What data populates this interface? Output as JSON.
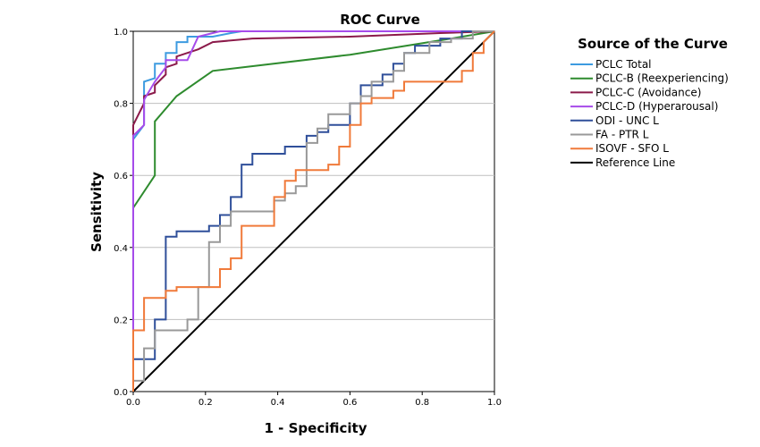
{
  "chart_data": {
    "type": "line",
    "title": "ROC Curve",
    "xlabel": "1 - Specificity",
    "ylabel": "Sensitivity",
    "xlim": [
      0,
      1
    ],
    "ylim": [
      0,
      1
    ],
    "xticks": [
      "0.0",
      "0.2",
      "0.4",
      "0.6",
      "0.8",
      "1.0"
    ],
    "yticks": [
      "0.0",
      "0.2",
      "0.4",
      "0.6",
      "0.8",
      "1.0"
    ],
    "grid": "horizontal",
    "legend_title": "Source of the Curve",
    "legend_position": "right",
    "series": [
      {
        "name": "PCLC Total",
        "color": "#3d9be0",
        "points": [
          [
            0,
            0
          ],
          [
            0,
            0.7
          ],
          [
            0.03,
            0.74
          ],
          [
            0.03,
            0.86
          ],
          [
            0.06,
            0.87
          ],
          [
            0.06,
            0.91
          ],
          [
            0.09,
            0.91
          ],
          [
            0.09,
            0.94
          ],
          [
            0.12,
            0.94
          ],
          [
            0.12,
            0.97
          ],
          [
            0.15,
            0.97
          ],
          [
            0.15,
            0.985
          ],
          [
            0.22,
            0.985
          ],
          [
            0.27,
            0.995
          ],
          [
            0.3,
            1.0
          ],
          [
            1,
            1
          ]
        ]
      },
      {
        "name": "PCLC-B (Reexperiencing)",
        "color": "#2e8b2e",
        "points": [
          [
            0,
            0
          ],
          [
            0,
            0.51
          ],
          [
            0.06,
            0.6
          ],
          [
            0.06,
            0.75
          ],
          [
            0.12,
            0.82
          ],
          [
            0.22,
            0.89
          ],
          [
            0.6,
            0.935
          ],
          [
            0.85,
            0.975
          ],
          [
            1,
            1
          ]
        ]
      },
      {
        "name": "PCLC-C (Avoidance)",
        "color": "#8b1a4a",
        "points": [
          [
            0,
            0
          ],
          [
            0,
            0.74
          ],
          [
            0.03,
            0.8
          ],
          [
            0.03,
            0.82
          ],
          [
            0.06,
            0.83
          ],
          [
            0.06,
            0.85
          ],
          [
            0.09,
            0.88
          ],
          [
            0.09,
            0.9
          ],
          [
            0.12,
            0.91
          ],
          [
            0.12,
            0.93
          ],
          [
            0.18,
            0.95
          ],
          [
            0.22,
            0.97
          ],
          [
            0.33,
            0.98
          ],
          [
            0.6,
            0.985
          ],
          [
            0.85,
            0.995
          ],
          [
            1,
            1
          ]
        ]
      },
      {
        "name": "PCLC-D (Hyperarousal)",
        "color": "#a64bea",
        "points": [
          [
            0,
            0
          ],
          [
            0,
            0.71
          ],
          [
            0.03,
            0.74
          ],
          [
            0.03,
            0.81
          ],
          [
            0.06,
            0.86
          ],
          [
            0.09,
            0.9
          ],
          [
            0.09,
            0.92
          ],
          [
            0.15,
            0.92
          ],
          [
            0.18,
            0.985
          ],
          [
            0.24,
            1.0
          ],
          [
            1,
            1
          ]
        ]
      },
      {
        "name": "ODI - UNC L",
        "color": "#2f4f9a",
        "points": [
          [
            0,
            0
          ],
          [
            0,
            0.09
          ],
          [
            0.06,
            0.09
          ],
          [
            0.06,
            0.2
          ],
          [
            0.09,
            0.2
          ],
          [
            0.09,
            0.43
          ],
          [
            0.12,
            0.43
          ],
          [
            0.12,
            0.445
          ],
          [
            0.21,
            0.445
          ],
          [
            0.21,
            0.46
          ],
          [
            0.24,
            0.46
          ],
          [
            0.24,
            0.49
          ],
          [
            0.27,
            0.49
          ],
          [
            0.27,
            0.54
          ],
          [
            0.3,
            0.54
          ],
          [
            0.3,
            0.63
          ],
          [
            0.33,
            0.63
          ],
          [
            0.33,
            0.66
          ],
          [
            0.42,
            0.66
          ],
          [
            0.42,
            0.68
          ],
          [
            0.48,
            0.68
          ],
          [
            0.48,
            0.71
          ],
          [
            0.51,
            0.71
          ],
          [
            0.51,
            0.72
          ],
          [
            0.54,
            0.72
          ],
          [
            0.54,
            0.74
          ],
          [
            0.6,
            0.74
          ],
          [
            0.6,
            0.8
          ],
          [
            0.63,
            0.8
          ],
          [
            0.63,
            0.85
          ],
          [
            0.69,
            0.85
          ],
          [
            0.69,
            0.88
          ],
          [
            0.72,
            0.88
          ],
          [
            0.72,
            0.91
          ],
          [
            0.75,
            0.91
          ],
          [
            0.75,
            0.94
          ],
          [
            0.78,
            0.94
          ],
          [
            0.78,
            0.96
          ],
          [
            0.85,
            0.96
          ],
          [
            0.85,
            0.98
          ],
          [
            0.91,
            0.98
          ],
          [
            0.91,
            1.0
          ],
          [
            1,
            1
          ]
        ]
      },
      {
        "name": "FA - PTR L",
        "color": "#999999",
        "points": [
          [
            0,
            0
          ],
          [
            0,
            0.03
          ],
          [
            0.03,
            0.03
          ],
          [
            0.03,
            0.12
          ],
          [
            0.06,
            0.12
          ],
          [
            0.06,
            0.17
          ],
          [
            0.15,
            0.17
          ],
          [
            0.15,
            0.2
          ],
          [
            0.18,
            0.2
          ],
          [
            0.18,
            0.29
          ],
          [
            0.21,
            0.29
          ],
          [
            0.21,
            0.415
          ],
          [
            0.24,
            0.415
          ],
          [
            0.24,
            0.46
          ],
          [
            0.27,
            0.46
          ],
          [
            0.27,
            0.5
          ],
          [
            0.39,
            0.5
          ],
          [
            0.39,
            0.53
          ],
          [
            0.42,
            0.53
          ],
          [
            0.42,
            0.55
          ],
          [
            0.45,
            0.55
          ],
          [
            0.45,
            0.57
          ],
          [
            0.48,
            0.57
          ],
          [
            0.48,
            0.69
          ],
          [
            0.51,
            0.69
          ],
          [
            0.51,
            0.73
          ],
          [
            0.54,
            0.73
          ],
          [
            0.54,
            0.77
          ],
          [
            0.6,
            0.77
          ],
          [
            0.6,
            0.8
          ],
          [
            0.63,
            0.8
          ],
          [
            0.63,
            0.82
          ],
          [
            0.66,
            0.82
          ],
          [
            0.66,
            0.86
          ],
          [
            0.72,
            0.86
          ],
          [
            0.72,
            0.89
          ],
          [
            0.75,
            0.89
          ],
          [
            0.75,
            0.94
          ],
          [
            0.82,
            0.94
          ],
          [
            0.82,
            0.97
          ],
          [
            0.88,
            0.97
          ],
          [
            0.88,
            0.98
          ],
          [
            0.94,
            0.98
          ],
          [
            0.94,
            1.0
          ],
          [
            1,
            1
          ]
        ]
      },
      {
        "name": "ISOVF - SFO L",
        "color": "#f07a3a",
        "points": [
          [
            0,
            0
          ],
          [
            0,
            0.17
          ],
          [
            0.03,
            0.17
          ],
          [
            0.03,
            0.26
          ],
          [
            0.09,
            0.26
          ],
          [
            0.09,
            0.28
          ],
          [
            0.12,
            0.28
          ],
          [
            0.12,
            0.29
          ],
          [
            0.24,
            0.29
          ],
          [
            0.24,
            0.34
          ],
          [
            0.27,
            0.34
          ],
          [
            0.27,
            0.37
          ],
          [
            0.3,
            0.37
          ],
          [
            0.3,
            0.46
          ],
          [
            0.39,
            0.46
          ],
          [
            0.39,
            0.54
          ],
          [
            0.42,
            0.54
          ],
          [
            0.42,
            0.585
          ],
          [
            0.45,
            0.585
          ],
          [
            0.45,
            0.615
          ],
          [
            0.54,
            0.615
          ],
          [
            0.54,
            0.63
          ],
          [
            0.57,
            0.63
          ],
          [
            0.57,
            0.68
          ],
          [
            0.6,
            0.68
          ],
          [
            0.6,
            0.74
          ],
          [
            0.63,
            0.74
          ],
          [
            0.63,
            0.8
          ],
          [
            0.66,
            0.8
          ],
          [
            0.66,
            0.815
          ],
          [
            0.72,
            0.815
          ],
          [
            0.72,
            0.835
          ],
          [
            0.75,
            0.835
          ],
          [
            0.75,
            0.86
          ],
          [
            0.91,
            0.86
          ],
          [
            0.91,
            0.89
          ],
          [
            0.94,
            0.89
          ],
          [
            0.94,
            0.94
          ],
          [
            0.97,
            0.94
          ],
          [
            0.97,
            0.97
          ],
          [
            1.0,
            1.0
          ]
        ]
      },
      {
        "name": "Reference Line",
        "color": "#000000",
        "points": [
          [
            0,
            0
          ],
          [
            1,
            1
          ]
        ]
      }
    ]
  }
}
